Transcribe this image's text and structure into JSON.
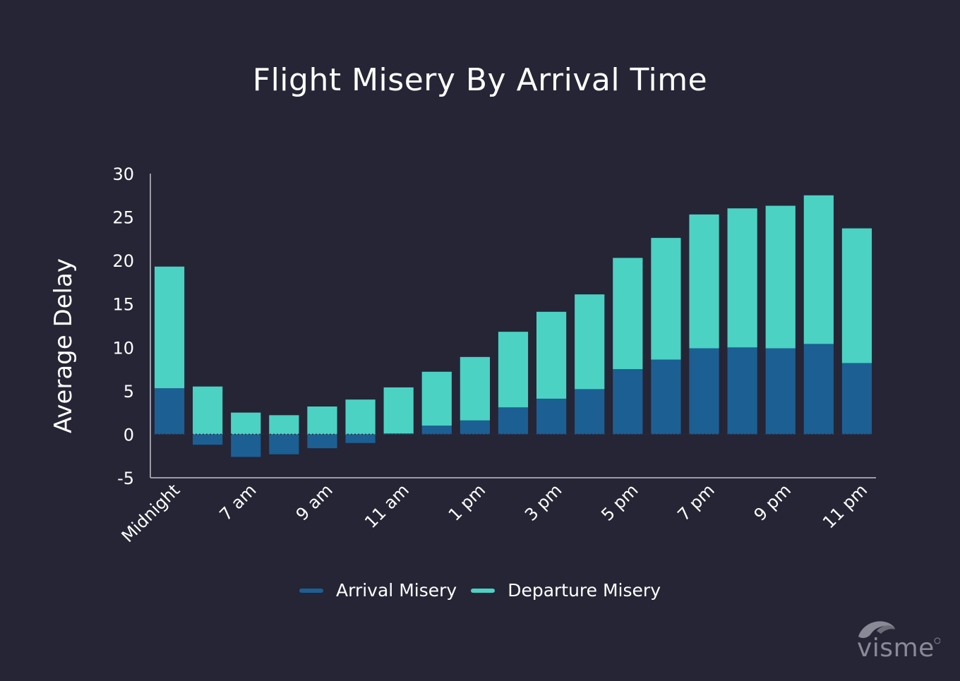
{
  "chart_data": {
    "type": "bar",
    "stacked": true,
    "title": "Flight Misery By Arrival Time",
    "ylabel": "Average Delay",
    "xlabel": "",
    "ylim": [
      -5,
      30
    ],
    "yticks": [
      30,
      25,
      20,
      15,
      10,
      5,
      0,
      -5
    ],
    "grid": false,
    "legend_position": "bottom",
    "x_tick_labels": [
      "Midnight",
      "7 am",
      "9 am",
      "11 am",
      "1 pm",
      "3 pm",
      "5 pm",
      "7 pm",
      "9 pm",
      "11 pm"
    ],
    "x_tick_positions": [
      0,
      2,
      4,
      6,
      8,
      10,
      12,
      14,
      16,
      18
    ],
    "bar_count": 19,
    "series": [
      {
        "name": "Arrival Misery",
        "color": "#1c5f93",
        "values": [
          5.3,
          -1.2,
          -2.6,
          -2.3,
          -1.6,
          -1.0,
          0.1,
          1.0,
          1.6,
          3.1,
          4.1,
          5.2,
          7.5,
          8.6,
          9.9,
          10.0,
          9.9,
          10.4,
          8.2
        ]
      },
      {
        "name": "Departure Misery",
        "color": "#4bd2c3",
        "values": [
          14.0,
          5.5,
          2.5,
          2.2,
          3.2,
          4.0,
          5.3,
          6.2,
          7.3,
          8.7,
          10.0,
          10.9,
          12.8,
          14.0,
          15.4,
          16.0,
          16.4,
          17.1,
          15.5
        ]
      }
    ]
  },
  "brand": {
    "name": "visme"
  }
}
